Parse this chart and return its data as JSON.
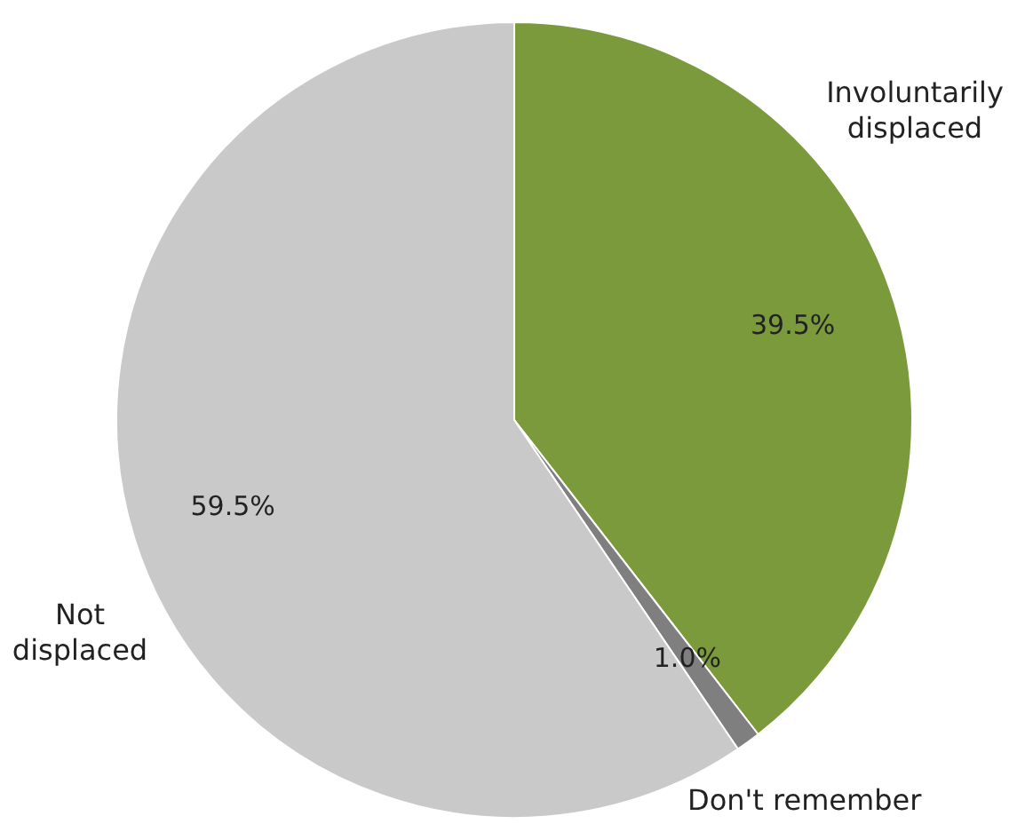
{
  "chart_data": {
    "type": "pie",
    "categories": [
      "Involuntarily displaced",
      "Don't remember",
      "Not displaced"
    ],
    "values": [
      39.5,
      1.0,
      59.5
    ],
    "value_labels": [
      "39.5%",
      "1.0%",
      "59.5%"
    ],
    "colors": [
      "#7a9a3c",
      "#7f7f7f",
      "#c9c9c9"
    ]
  }
}
